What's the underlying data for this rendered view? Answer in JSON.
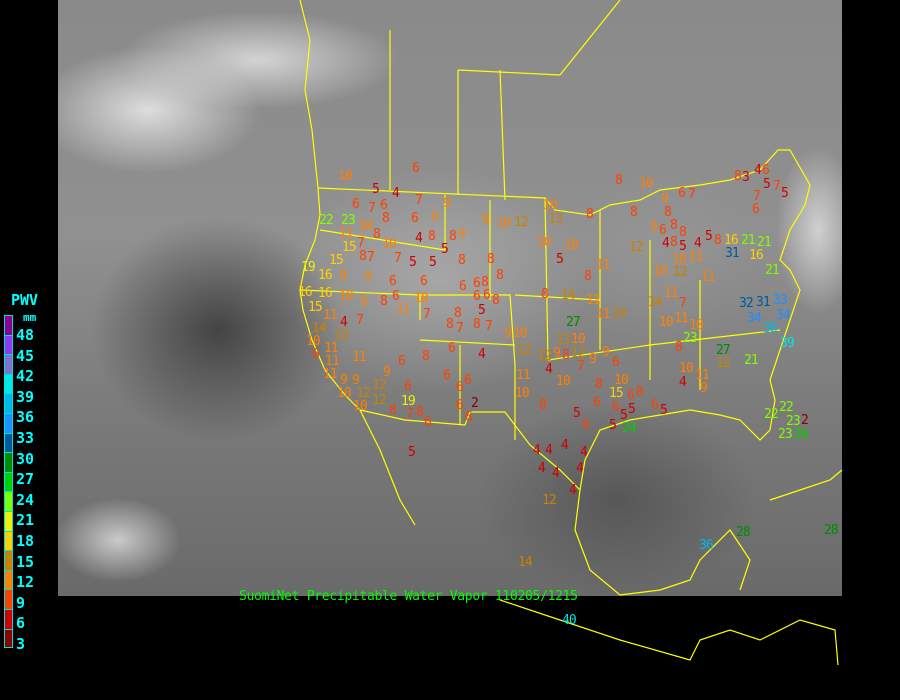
{
  "caption": "SuomiNet Precipitable Water Vapor 110205/1215",
  "legend": {
    "title": "PWV",
    "unit": "mm",
    "labels": [
      "48",
      "45",
      "42",
      "39",
      "36",
      "33",
      "30",
      "27",
      "24",
      "21",
      "18",
      "15",
      "12",
      "9",
      "6",
      "3"
    ],
    "colors": [
      "#8c0090",
      "#9038f0",
      "#8070d0",
      "#00e8e8",
      "#00b8e8",
      "#1e90ff",
      "#005a9a",
      "#008c00",
      "#00d000",
      "#80ff00",
      "#f0f000",
      "#ffd000",
      "#c88200",
      "#ff8000",
      "#ff4000",
      "#d00000",
      "#8c0000"
    ]
  },
  "map": {
    "station_values": [
      6,
      10,
      5,
      4,
      6,
      7,
      6,
      8,
      7,
      9,
      6,
      9,
      23,
      22,
      11,
      10,
      8,
      15,
      9,
      10,
      12,
      4,
      8,
      8,
      9,
      7,
      8,
      10,
      7,
      7,
      5,
      8,
      5,
      5,
      8,
      8,
      15,
      19,
      16,
      9,
      9,
      6,
      6,
      6,
      6,
      8,
      6,
      6,
      8,
      5,
      16,
      16,
      10,
      9,
      8,
      6,
      10,
      11,
      7,
      8,
      7,
      7,
      8,
      8,
      15,
      11,
      14,
      10,
      4,
      13,
      7,
      9,
      11,
      6,
      11,
      11,
      11,
      9,
      6,
      8,
      6,
      4,
      9,
      6,
      6,
      6,
      9,
      12,
      12,
      10,
      10,
      12,
      6,
      19,
      8,
      8,
      7,
      6,
      2,
      6,
      6,
      8,
      10,
      7,
      8,
      3,
      4,
      6,
      5,
      7,
      7,
      6,
      5,
      6,
      8,
      8,
      8,
      9,
      10,
      13,
      10,
      10,
      5,
      9,
      6,
      8,
      8,
      5,
      4,
      8,
      10,
      12,
      12,
      11,
      4,
      5,
      8,
      16,
      21,
      21,
      16,
      31,
      21,
      11,
      10,
      11,
      8,
      11,
      8,
      14,
      11,
      14,
      7,
      10,
      10,
      11,
      14,
      27,
      32,
      31,
      33,
      34,
      34,
      38,
      39,
      21,
      27,
      12,
      23,
      11,
      13,
      10,
      12,
      8,
      9,
      10,
      12,
      12,
      4,
      7,
      9,
      9,
      6,
      8,
      10,
      10,
      11,
      9,
      4,
      8,
      15,
      10,
      11,
      10,
      8,
      6,
      8,
      5,
      6,
      6,
      5,
      5,
      6,
      5,
      6,
      5,
      24,
      22,
      22,
      23,
      23,
      26,
      2,
      4,
      4,
      4,
      4,
      4,
      4,
      4,
      4,
      5,
      12,
      14,
      40,
      36,
      28,
      28
    ]
  }
}
